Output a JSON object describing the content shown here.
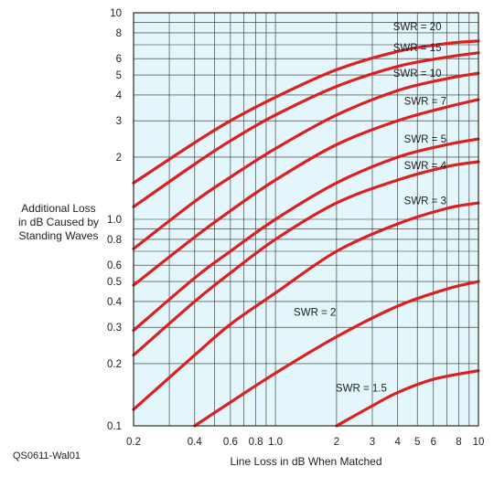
{
  "chart_data": {
    "type": "line",
    "title": "",
    "xlabel": "Line Loss in dB When Matched",
    "ylabel_lines": [
      "Additional Loss",
      "in dB Caused by",
      "Standing Waves"
    ],
    "x_scale": "log",
    "y_scale": "log",
    "xlim": [
      0.2,
      10
    ],
    "ylim": [
      0.1,
      10
    ],
    "grid": true,
    "x_ticks": [
      0.2,
      0.4,
      0.6,
      0.8,
      1.0,
      2,
      3,
      4,
      5,
      6,
      8,
      10
    ],
    "x_tick_labels": [
      "0.2",
      "0.4",
      "0.6",
      "0.8",
      "1.0",
      "2",
      "3",
      "4",
      "5",
      "6",
      "8",
      "10"
    ],
    "y_ticks": [
      0.1,
      0.2,
      0.3,
      0.4,
      0.5,
      0.6,
      0.8,
      1.0,
      2,
      3,
      4,
      5,
      6,
      8,
      10
    ],
    "y_tick_labels": [
      "0.1",
      "0.2",
      "0.3",
      "0.4",
      "0.5",
      "0.6",
      "0.8",
      "1.0",
      "2",
      "3",
      "4",
      "5",
      "6",
      "8",
      "10"
    ],
    "series": [
      {
        "name": "SWR = 20",
        "x": [
          0.2,
          0.4,
          0.6,
          1.0,
          2,
          4,
          7,
          10
        ],
        "y": [
          1.5,
          2.35,
          3.0,
          3.9,
          5.3,
          6.5,
          7.1,
          7.3
        ]
      },
      {
        "name": "SWR = 15",
        "x": [
          0.2,
          0.4,
          0.6,
          1.0,
          2,
          4,
          7,
          10
        ],
        "y": [
          1.15,
          1.85,
          2.4,
          3.2,
          4.4,
          5.5,
          6.1,
          6.4
        ]
      },
      {
        "name": "SWR = 10",
        "x": [
          0.2,
          0.4,
          0.6,
          1.0,
          2,
          4,
          7,
          10
        ],
        "y": [
          0.72,
          1.22,
          1.6,
          2.2,
          3.2,
          4.2,
          4.8,
          5.1
        ]
      },
      {
        "name": "SWR = 7",
        "x": [
          0.2,
          0.4,
          0.6,
          1.0,
          2,
          4,
          7,
          10
        ],
        "y": [
          0.48,
          0.82,
          1.1,
          1.55,
          2.3,
          3.0,
          3.5,
          3.8
        ]
      },
      {
        "name": "SWR = 5",
        "x": [
          0.2,
          0.4,
          0.6,
          1.0,
          2,
          4,
          7,
          10
        ],
        "y": [
          0.29,
          0.52,
          0.7,
          1.0,
          1.5,
          2.0,
          2.3,
          2.45
        ]
      },
      {
        "name": "SWR = 4",
        "x": [
          0.2,
          0.4,
          0.6,
          1.0,
          2,
          4,
          7,
          10
        ],
        "y": [
          0.22,
          0.4,
          0.55,
          0.8,
          1.2,
          1.55,
          1.8,
          1.9
        ]
      },
      {
        "name": "SWR = 3",
        "x": [
          0.2,
          0.4,
          0.6,
          1.0,
          2,
          4,
          7,
          10
        ],
        "y": [
          0.12,
          0.22,
          0.31,
          0.44,
          0.7,
          0.95,
          1.13,
          1.2
        ]
      },
      {
        "name": "SWR = 2",
        "x": [
          0.4,
          0.6,
          1.0,
          2,
          4,
          7,
          10
        ],
        "y": [
          0.1,
          0.13,
          0.18,
          0.27,
          0.38,
          0.46,
          0.5
        ]
      },
      {
        "name": "SWR = 1.5",
        "x": [
          2,
          3,
          4,
          6,
          10
        ],
        "y": [
          0.1,
          0.125,
          0.145,
          0.168,
          0.185
        ]
      }
    ],
    "series_labels": [
      {
        "text": "SWR = 20",
        "x": 3.8,
        "y": 8.6
      },
      {
        "text": "SWR = 15",
        "x": 3.8,
        "y": 6.8
      },
      {
        "text": "SWR = 10",
        "x": 3.8,
        "y": 5.1
      },
      {
        "text": "SWR = 7",
        "x": 4.3,
        "y": 3.75
      },
      {
        "text": "SWR = 5",
        "x": 4.3,
        "y": 2.45
      },
      {
        "text": "SWR = 4",
        "x": 4.3,
        "y": 1.82
      },
      {
        "text": "SWR = 3",
        "x": 4.3,
        "y": 1.23
      },
      {
        "text": "SWR = 2",
        "x": 1.23,
        "y": 0.355
      },
      {
        "text": "SWR = 1.5",
        "x": 1.98,
        "y": 0.153
      }
    ],
    "colors": {
      "plot_bg": "#e3f6fb",
      "grid": "#2a2a2a",
      "curve": "#dc2020",
      "axis_text": "#222222"
    }
  },
  "credit": "QS0611-Wal01"
}
